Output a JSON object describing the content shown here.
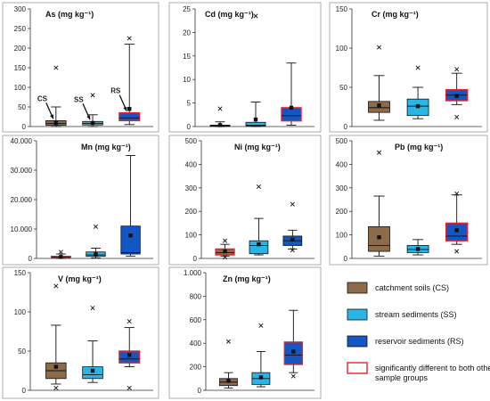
{
  "colors": {
    "CS": "#8b6b4a",
    "SS": "#29b6e6",
    "RS": "#1456c4",
    "sig": "#e8202a",
    "whisker": "#111111"
  },
  "legend": {
    "items": [
      {
        "key": "CS",
        "label": "catchment soils (CS)"
      },
      {
        "key": "SS",
        "label": "stream sediments (SS)"
      },
      {
        "key": "RS",
        "label": "reservoir sediments (RS)"
      },
      {
        "key": "sig",
        "label": "significantly different to both other sample groups"
      }
    ]
  },
  "chart_data": [
    {
      "type": "box",
      "element": "As",
      "title": "As (mg kg⁻¹)",
      "ylim": [
        0,
        300
      ],
      "yticks": [
        0,
        50,
        100,
        150,
        200,
        250,
        300
      ],
      "ytick_labels": [
        "0",
        "50",
        "100",
        "150",
        "200",
        "250",
        "300"
      ],
      "groups": [
        {
          "key": "CS",
          "label": "CS",
          "whisk_low": 0,
          "q1": 3,
          "median": 8,
          "q3": 15,
          "whisk_high": 50,
          "mean": 9,
          "outliers": [
            150
          ],
          "sig": false
        },
        {
          "key": "SS",
          "label": "SS",
          "whisk_low": 0,
          "q1": 4,
          "median": 8,
          "q3": 13,
          "whisk_high": 30,
          "mean": 9,
          "outliers": [
            80
          ],
          "sig": false
        },
        {
          "key": "RS",
          "label": "RS",
          "whisk_low": 5,
          "q1": 15,
          "median": 22,
          "q3": 35,
          "whisk_high": 210,
          "mean": 45,
          "outliers": [
            225
          ],
          "sig": true
        }
      ]
    },
    {
      "type": "box",
      "element": "Cd",
      "title": "Cd (mg kg⁻¹)",
      "ylim": [
        0,
        25
      ],
      "yticks": [
        0,
        5,
        10,
        15,
        20,
        25
      ],
      "ytick_labels": [
        "0",
        "5",
        "10",
        "15",
        "20",
        "25"
      ],
      "groups": [
        {
          "key": "CS",
          "whisk_low": 0,
          "q1": 0.05,
          "median": 0.15,
          "q3": 0.3,
          "whisk_high": 1,
          "mean": 0.3,
          "outliers": [
            3.8
          ],
          "sig": false
        },
        {
          "key": "SS",
          "whisk_low": 0,
          "q1": 0.1,
          "median": 0.3,
          "q3": 0.9,
          "whisk_high": 5.2,
          "mean": 1.5,
          "outliers": [
            23.5
          ],
          "sig": false
        },
        {
          "key": "RS",
          "whisk_low": 0.3,
          "q1": 1.2,
          "median": 2.3,
          "q3": 4.0,
          "whisk_high": 13.5,
          "mean": 4.0,
          "outliers": [],
          "sig": true
        }
      ]
    },
    {
      "type": "box",
      "element": "Cr",
      "title": "Cr (mg kg⁻¹)",
      "ylim": [
        0,
        150
      ],
      "yticks": [
        0,
        50,
        100,
        150
      ],
      "ytick_labels": [
        "0",
        "50",
        "100",
        "150"
      ],
      "groups": [
        {
          "key": "CS",
          "whisk_low": 8,
          "q1": 18,
          "median": 24,
          "q3": 32,
          "whisk_high": 65,
          "mean": 27,
          "outliers": [
            101
          ],
          "sig": false
        },
        {
          "key": "SS",
          "whisk_low": 10,
          "q1": 14,
          "median": 26,
          "q3": 35,
          "whisk_high": 50,
          "mean": 26,
          "outliers": [
            75
          ],
          "sig": false
        },
        {
          "key": "RS",
          "whisk_low": 28,
          "q1": 33,
          "median": 40,
          "q3": 47,
          "whisk_high": 68,
          "mean": 39,
          "outliers": [
            73,
            12
          ],
          "sig": true
        }
      ]
    },
    {
      "type": "box",
      "element": "Mn",
      "title": "Mn (mg kg⁻¹)",
      "ylim": [
        0,
        40000
      ],
      "yticks": [
        0,
        10000,
        20000,
        30000,
        40000
      ],
      "ytick_labels": [
        "0",
        "10.000",
        "20.000",
        "30.000",
        "40.000"
      ],
      "groups": [
        {
          "key": "CS",
          "whisk_low": 0,
          "q1": 200,
          "median": 350,
          "q3": 700,
          "whisk_high": 1500,
          "mean": 500,
          "outliers": [
            2200
          ],
          "sig": true
        },
        {
          "key": "SS",
          "whisk_low": 200,
          "q1": 700,
          "median": 1200,
          "q3": 2200,
          "whisk_high": 3500,
          "mean": 1400,
          "outliers": [
            10800
          ],
          "sig": false
        },
        {
          "key": "RS",
          "whisk_low": 800,
          "q1": 1500,
          "median": 2000,
          "q3": 11000,
          "whisk_high": 35000,
          "mean": 7800,
          "outliers": [],
          "sig": false
        }
      ]
    },
    {
      "type": "box",
      "element": "Ni",
      "title": "Ni (mg kg⁻¹)",
      "ylim": [
        0,
        500
      ],
      "yticks": [
        0,
        100,
        200,
        300,
        400,
        500
      ],
      "ytick_labels": [
        "0",
        "100",
        "200",
        "300",
        "400",
        "500"
      ],
      "groups": [
        {
          "key": "CS",
          "whisk_low": 10,
          "q1": 15,
          "median": 25,
          "q3": 40,
          "whisk_high": 60,
          "mean": 30,
          "outliers": [
            75,
            5
          ],
          "sig": true
        },
        {
          "key": "SS",
          "whisk_low": 15,
          "q1": 20,
          "median": 55,
          "q3": 75,
          "whisk_high": 170,
          "mean": 60,
          "outliers": [
            305
          ],
          "sig": false
        },
        {
          "key": "RS",
          "whisk_low": 40,
          "q1": 55,
          "median": 75,
          "q3": 95,
          "whisk_high": 120,
          "mean": 80,
          "outliers": [
            230,
            35
          ],
          "sig": false
        }
      ]
    },
    {
      "type": "box",
      "element": "Pb",
      "title": "Pb (mg kg⁻¹)",
      "ylim": [
        0,
        500
      ],
      "yticks": [
        0,
        100,
        200,
        300,
        400,
        500
      ],
      "ytick_labels": [
        "0",
        "100",
        "200",
        "300",
        "400",
        "500"
      ],
      "groups": [
        {
          "key": "CS",
          "whisk_low": 10,
          "q1": 30,
          "median": 55,
          "q3": 135,
          "whisk_high": 265,
          "mean": 90,
          "outliers": [
            450
          ],
          "sig": false
        },
        {
          "key": "SS",
          "whisk_low": 15,
          "q1": 25,
          "median": 38,
          "q3": 55,
          "whisk_high": 80,
          "mean": 40,
          "outliers": [],
          "sig": false
        },
        {
          "key": "RS",
          "whisk_low": 60,
          "q1": 75,
          "median": 95,
          "q3": 150,
          "whisk_high": 270,
          "mean": 120,
          "outliers": [
            30,
            275
          ],
          "sig": true
        }
      ]
    },
    {
      "type": "box",
      "element": "V",
      "title": "V (mg kg⁻¹)",
      "ylim": [
        0,
        150
      ],
      "yticks": [
        0,
        50,
        100,
        150
      ],
      "ytick_labels": [
        "0",
        "50",
        "100",
        "150"
      ],
      "groups": [
        {
          "key": "CS",
          "whisk_low": 8,
          "q1": 15,
          "median": 25,
          "q3": 35,
          "whisk_high": 83,
          "mean": 30,
          "outliers": [
            133,
            3
          ],
          "sig": false
        },
        {
          "key": "SS",
          "whisk_low": 10,
          "q1": 15,
          "median": 20,
          "q3": 30,
          "whisk_high": 63,
          "mean": 25,
          "outliers": [
            105
          ],
          "sig": false
        },
        {
          "key": "RS",
          "whisk_low": 30,
          "q1": 35,
          "median": 40,
          "q3": 50,
          "whisk_high": 80,
          "mean": 45,
          "outliers": [
            88,
            3
          ],
          "sig": true
        }
      ]
    },
    {
      "type": "box",
      "element": "Zn",
      "title": "Zn (mg kg⁻¹)",
      "ylim": [
        0,
        1000
      ],
      "yticks": [
        0,
        200,
        400,
        600,
        800,
        1000
      ],
      "ytick_labels": [
        "0",
        "200",
        "400",
        "600",
        "800",
        "1.000"
      ],
      "groups": [
        {
          "key": "CS",
          "whisk_low": 20,
          "q1": 40,
          "median": 70,
          "q3": 100,
          "whisk_high": 150,
          "mean": 80,
          "outliers": [
            415
          ],
          "sig": false
        },
        {
          "key": "SS",
          "whisk_low": 30,
          "q1": 50,
          "median": 100,
          "q3": 150,
          "whisk_high": 330,
          "mean": 110,
          "outliers": [
            550
          ],
          "sig": false
        },
        {
          "key": "RS",
          "whisk_low": 150,
          "q1": 220,
          "median": 300,
          "q3": 410,
          "whisk_high": 680,
          "mean": 330,
          "outliers": [
            120
          ],
          "sig": true
        }
      ]
    }
  ]
}
